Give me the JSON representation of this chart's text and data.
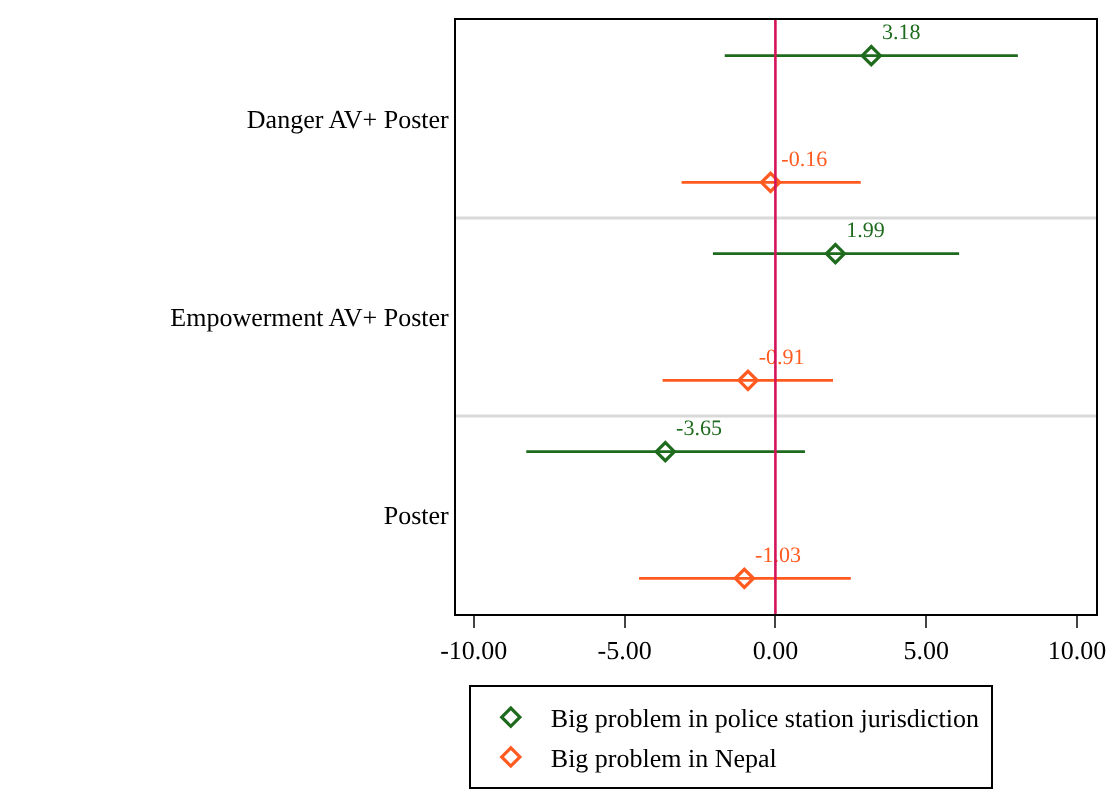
{
  "chart_data": {
    "type": "scatter",
    "orientation": "horizontal",
    "categories": [
      "Danger AV+ Poster",
      "Empowerment AV+ Poster",
      "Poster"
    ],
    "series": [
      {
        "name": "Big problem in police station jurisdiction",
        "color": "#1e6b1e",
        "values": [
          3.18,
          1.99,
          -3.65
        ],
        "errors": [
          [
            -1.68,
            8.04
          ],
          [
            -2.07,
            6.09
          ],
          [
            -8.26,
            0.98
          ]
        ]
      },
      {
        "name": "Big problem in Nepal",
        "color": "#ff5a1f",
        "values": [
          -0.16,
          -0.91,
          -1.03
        ],
        "errors": [
          [
            -3.11,
            2.83
          ],
          [
            -3.74,
            1.91
          ],
          [
            -4.52,
            2.5
          ]
        ]
      }
    ],
    "xlim": [
      -10.59,
      10.63
    ],
    "xticks": [
      {
        "value": -10,
        "label": "-10.00"
      },
      {
        "value": -5,
        "label": "-5.00"
      },
      {
        "value": 0,
        "label": "0.00"
      },
      {
        "value": 5,
        "label": "5.00"
      },
      {
        "value": 10,
        "label": "10.00"
      }
    ],
    "ref_lines": [
      {
        "axis": "x",
        "value": 0,
        "color": "#d4145a"
      }
    ],
    "grid": "y",
    "data_labels": true,
    "legend": "bottom",
    "marker": "diamond"
  }
}
